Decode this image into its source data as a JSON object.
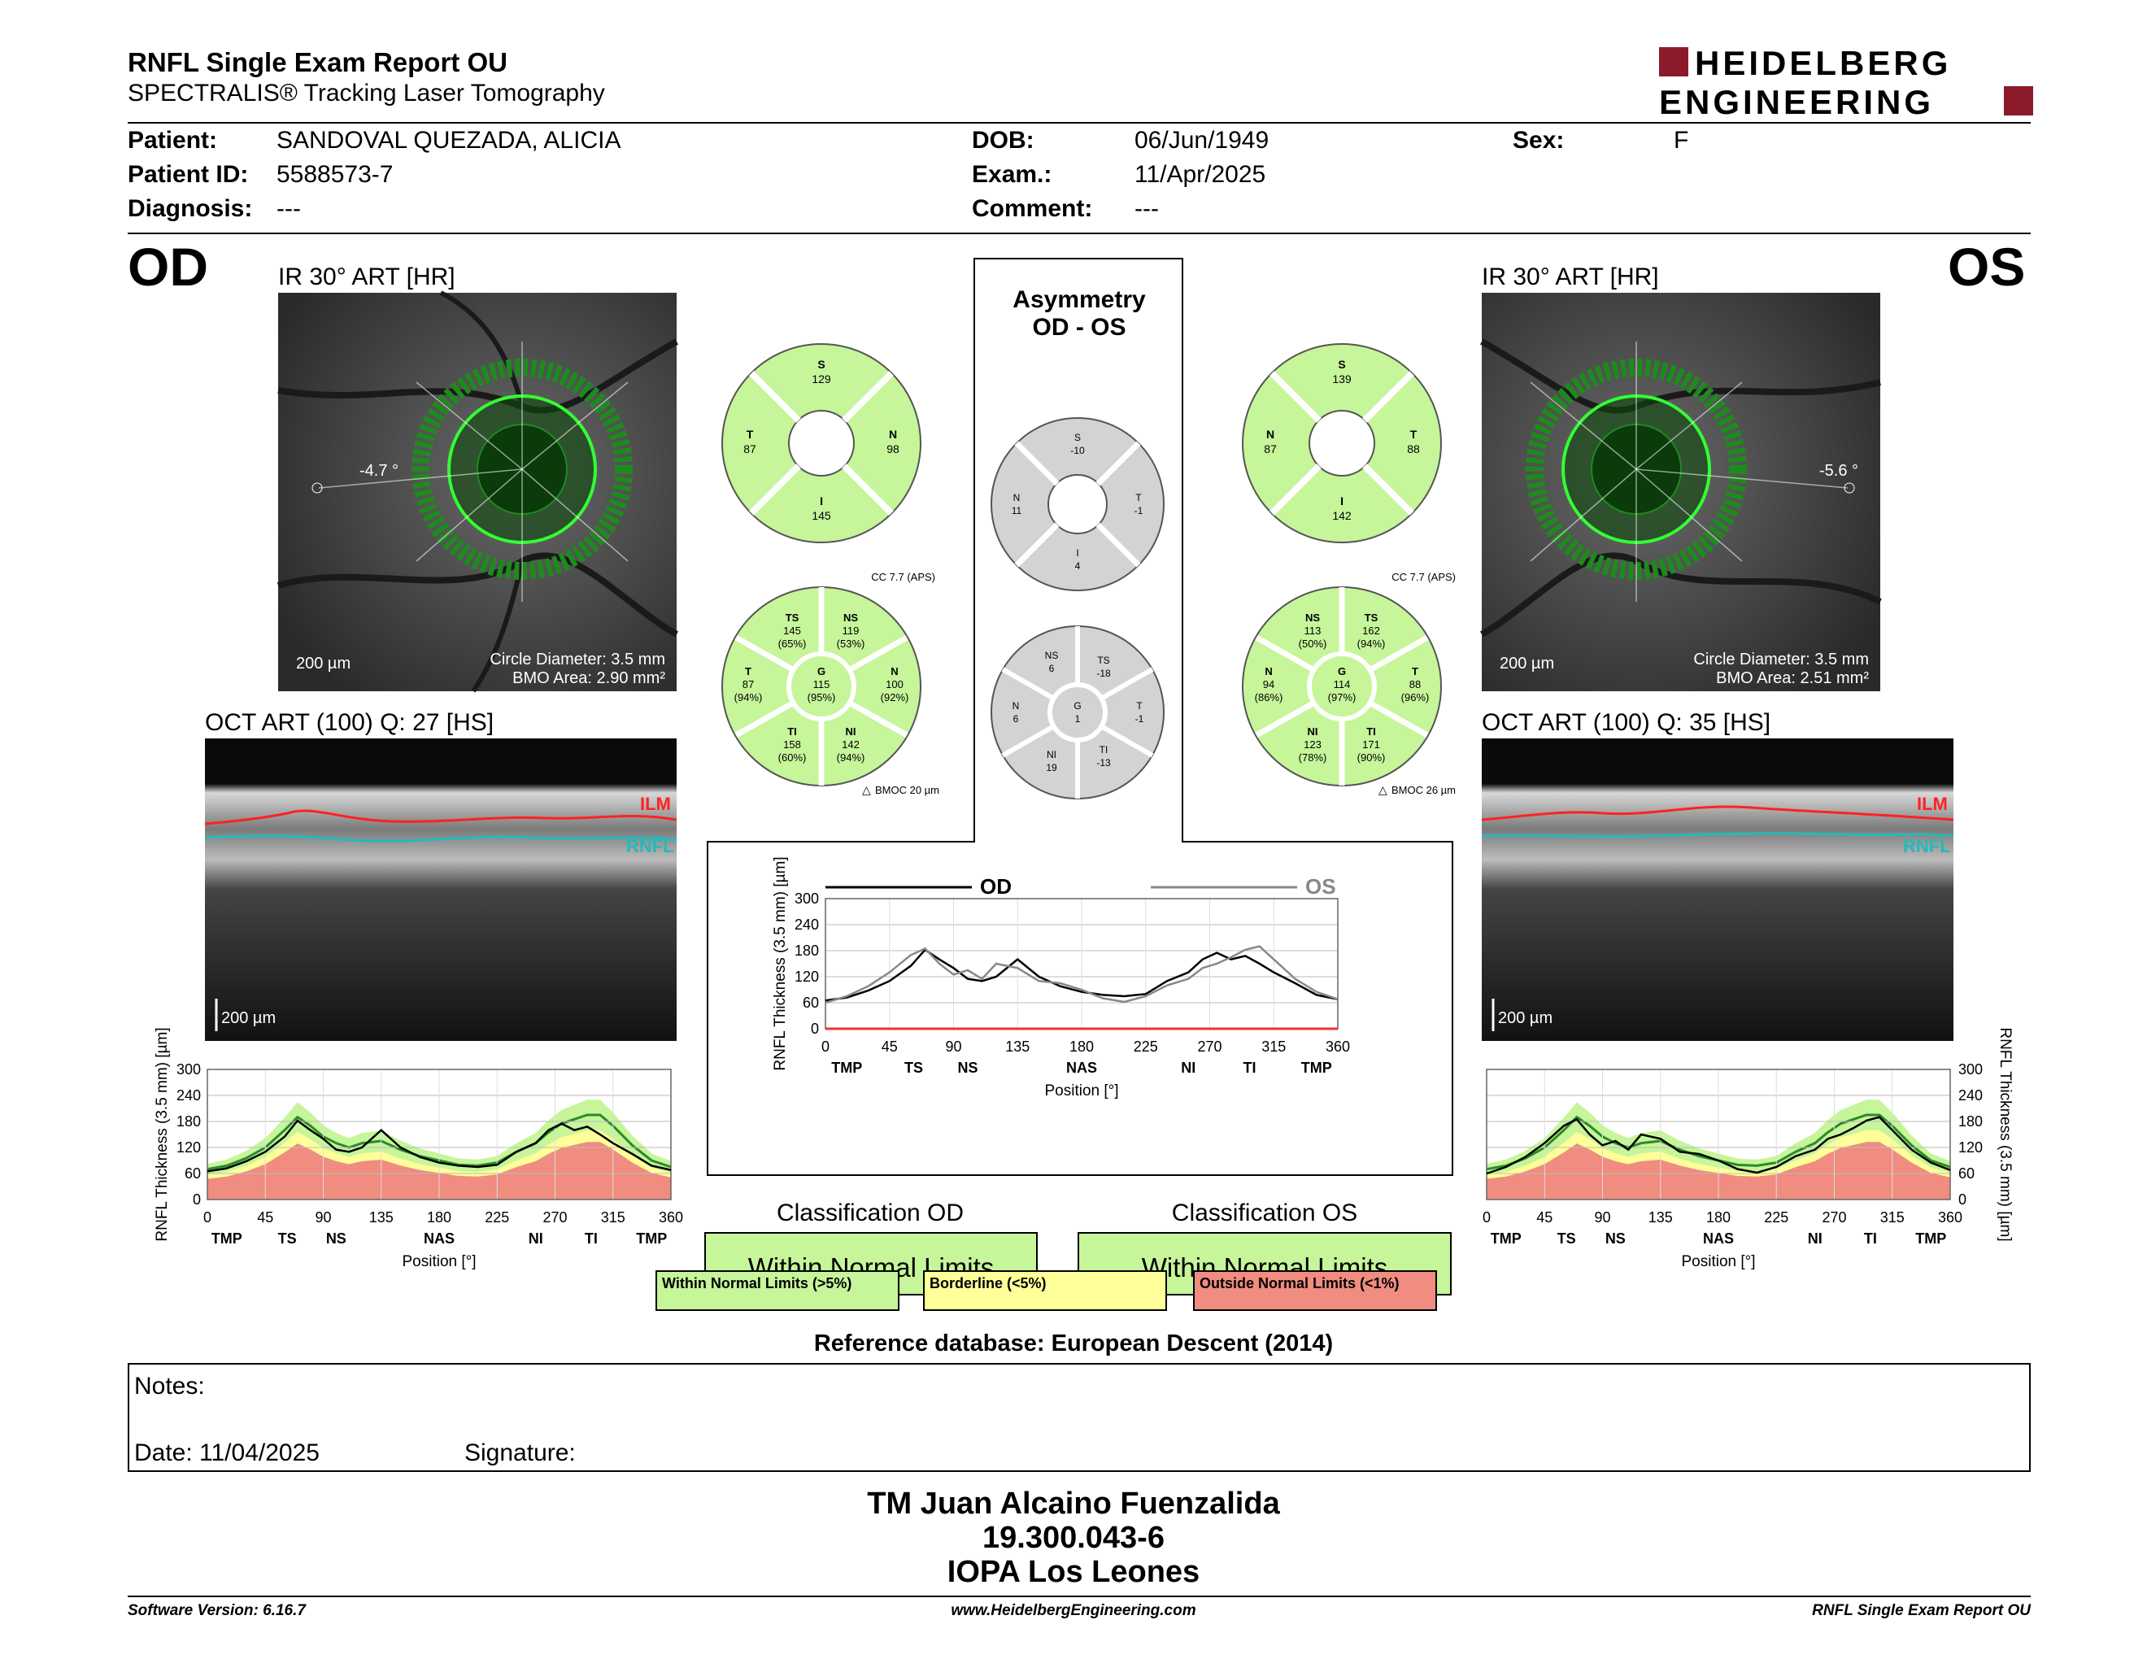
{
  "header": {
    "title": "RNFL Single Exam Report OU",
    "subtitle": "SPECTRALIS® Tracking Laser Tomography",
    "logo_line1": "HEIDELBERG",
    "logo_line2": "ENGINEERING"
  },
  "patient": {
    "patient_label": "Patient:",
    "patient_value": "SANDOVAL QUEZADA, ALICIA",
    "id_label": "Patient ID:",
    "id_value": "5588573-7",
    "diag_label": "Diagnosis:",
    "diag_value": "---",
    "dob_label": "DOB:",
    "dob_value": "06/Jun/1949",
    "exam_label": "Exam.:",
    "exam_value": "11/Apr/2025",
    "comment_label": "Comment:",
    "comment_value": "---",
    "sex_label": "Sex:",
    "sex_value": "F"
  },
  "od": {
    "eye": "OD",
    "ir_title": "IR 30° ART [HR]",
    "angle": "-4.7 °",
    "scale": "200 µm",
    "circle": "Circle Diameter: 3.5 mm",
    "bmo": "BMO Area: 2.90 mm²",
    "oct_title": "OCT ART (100) Q: 27 [HS]",
    "oct_scale": "200 µm",
    "ilm": "ILM",
    "rnfl": "RNFL",
    "cc": "CC 7.7 (APS)",
    "bmoc": "BMOC 20 µm",
    "sectors4": {
      "S": "129",
      "T": "87",
      "N": "98",
      "I": "145"
    },
    "sectors6": {
      "TS": {
        "n": "TS",
        "v": "145",
        "p": "(65%)"
      },
      "NS": {
        "n": "NS",
        "v": "119",
        "p": "(53%)"
      },
      "T": {
        "n": "T",
        "v": "87",
        "p": "(94%)"
      },
      "G": {
        "n": "G",
        "v": "115",
        "p": "(95%)"
      },
      "N": {
        "n": "N",
        "v": "100",
        "p": "(92%)"
      },
      "TI": {
        "n": "TI",
        "v": "158",
        "p": "(60%)"
      },
      "NI": {
        "n": "NI",
        "v": "142",
        "p": "(94%)"
      }
    },
    "classification_title": "Classification OD",
    "classification": "Within Normal Limits"
  },
  "os": {
    "eye": "OS",
    "ir_title": "IR 30° ART [HR]",
    "angle": "-5.6 °",
    "scale": "200 µm",
    "circle": "Circle Diameter: 3.5 mm",
    "bmo": "BMO Area: 2.51 mm²",
    "oct_title": "OCT ART (100) Q: 35 [HS]",
    "oct_scale": "200 µm",
    "ilm": "ILM",
    "rnfl": "RNFL",
    "cc": "CC 7.7 (APS)",
    "bmoc": "BMOC 26 µm",
    "sectors4": {
      "S": "139",
      "N": "87",
      "T": "88",
      "I": "142"
    },
    "sectors6": {
      "NS": {
        "n": "NS",
        "v": "113",
        "p": "(50%)"
      },
      "TS": {
        "n": "TS",
        "v": "162",
        "p": "(94%)"
      },
      "N": {
        "n": "N",
        "v": "94",
        "p": "(86%)"
      },
      "G": {
        "n": "G",
        "v": "114",
        "p": "(97%)"
      },
      "T": {
        "n": "T",
        "v": "88",
        "p": "(96%)"
      },
      "NI": {
        "n": "NI",
        "v": "123",
        "p": "(78%)"
      },
      "TI": {
        "n": "TI",
        "v": "171",
        "p": "(90%)"
      }
    },
    "classification_title": "Classification OS",
    "classification": "Within Normal Limits"
  },
  "asymmetry": {
    "title1": "Asymmetry",
    "title2": "OD - OS",
    "s4": {
      "S": "-10",
      "N": "11",
      "T": "-1",
      "I": "4"
    },
    "s6": {
      "NS": "6",
      "TS": "-18",
      "N": "6",
      "G": "1",
      "T": "-1",
      "NI": "19",
      "TI": "-13"
    },
    "labels6": {
      "NS": "NS",
      "TS": "TS",
      "N": "N",
      "G": "G",
      "T": "T",
      "NI": "NI",
      "TI": "TI"
    },
    "labels4": {
      "S": "S",
      "N": "N",
      "T": "T",
      "I": "I"
    }
  },
  "labels4": {
    "S": "S",
    "T": "T",
    "N": "N",
    "I": "I"
  },
  "chart_data": [
    {
      "type": "line",
      "name_hint": "OD RNFL thickness profile",
      "xlabel": "Position [°]",
      "ylabel": "RNFL Thickness (3.5 mm) [µm]",
      "xticks": [
        "0",
        "45",
        "90",
        "135",
        "180",
        "225",
        "270",
        "315",
        "360"
      ],
      "yticks": [
        "0",
        "60",
        "120",
        "180",
        "240",
        "300"
      ],
      "sector_labels": [
        "TMP",
        "TS",
        "NS",
        "NAS",
        "NI",
        "TI",
        "TMP"
      ],
      "sector_positions": [
        15,
        62,
        100,
        180,
        255,
        298,
        345
      ],
      "xlim": [
        0,
        360
      ],
      "ylim": [
        0,
        300
      ],
      "x": [
        0,
        15,
        30,
        45,
        60,
        70,
        80,
        90,
        100,
        110,
        120,
        135,
        150,
        165,
        180,
        195,
        210,
        225,
        240,
        255,
        265,
        275,
        285,
        295,
        305,
        315,
        330,
        345,
        360
      ],
      "values": [
        65,
        72,
        88,
        110,
        145,
        182,
        160,
        140,
        115,
        110,
        120,
        160,
        120,
        98,
        85,
        78,
        75,
        80,
        110,
        130,
        160,
        175,
        160,
        168,
        150,
        130,
        105,
        78,
        68
      ]
    },
    {
      "type": "line",
      "name_hint": "OS RNFL thickness profile",
      "xlabel": "Position [°]",
      "ylabel": "RNFL Thickness (3.5 mm) [µm]",
      "xticks": [
        "0",
        "45",
        "90",
        "135",
        "180",
        "225",
        "270",
        "315",
        "360"
      ],
      "yticks": [
        "0",
        "60",
        "120",
        "180",
        "240",
        "300"
      ],
      "sector_labels": [
        "TMP",
        "TS",
        "NS",
        "NAS",
        "NI",
        "TI",
        "TMP"
      ],
      "sector_positions": [
        15,
        62,
        100,
        180,
        255,
        298,
        345
      ],
      "xlim": [
        0,
        360
      ],
      "ylim": [
        0,
        300
      ],
      "x": [
        0,
        15,
        30,
        45,
        60,
        70,
        80,
        90,
        100,
        110,
        120,
        135,
        150,
        165,
        180,
        195,
        210,
        225,
        240,
        255,
        265,
        275,
        285,
        295,
        305,
        315,
        330,
        345,
        360
      ],
      "values": [
        60,
        75,
        98,
        130,
        170,
        185,
        150,
        125,
        135,
        115,
        150,
        140,
        110,
        105,
        90,
        70,
        62,
        75,
        100,
        115,
        140,
        150,
        165,
        182,
        190,
        160,
        115,
        85,
        68
      ]
    },
    {
      "type": "line",
      "name_hint": "OD vs OS asymmetry profile",
      "xlabel": "Position [°]",
      "ylabel": "RNFL Thickness (3.5 mm) [µm]",
      "xticks": [
        "0",
        "45",
        "90",
        "135",
        "180",
        "225",
        "270",
        "315",
        "360"
      ],
      "yticks": [
        "0",
        "60",
        "120",
        "180",
        "240",
        "300"
      ],
      "sector_labels": [
        "TMP",
        "TS",
        "NS",
        "NAS",
        "NI",
        "TI",
        "TMP"
      ],
      "sector_positions": [
        15,
        62,
        100,
        180,
        255,
        298,
        345
      ],
      "xlim": [
        0,
        360
      ],
      "ylim": [
        0,
        300
      ],
      "legend": [
        "OD",
        "OS"
      ],
      "series": [
        {
          "name": "OD",
          "values": [
            65,
            72,
            88,
            110,
            145,
            182,
            160,
            140,
            115,
            110,
            120,
            160,
            120,
            98,
            85,
            78,
            75,
            80,
            110,
            130,
            160,
            175,
            160,
            168,
            150,
            130,
            105,
            78,
            68
          ]
        },
        {
          "name": "OS",
          "values": [
            60,
            75,
            98,
            130,
            170,
            185,
            150,
            125,
            135,
            115,
            150,
            140,
            110,
            105,
            90,
            70,
            62,
            75,
            100,
            115,
            140,
            150,
            165,
            182,
            190,
            160,
            115,
            85,
            68
          ]
        }
      ],
      "x": [
        0,
        15,
        30,
        45,
        60,
        70,
        80,
        90,
        100,
        110,
        120,
        135,
        150,
        165,
        180,
        195,
        210,
        225,
        240,
        255,
        265,
        275,
        285,
        295,
        305,
        315,
        330,
        345,
        360
      ]
    }
  ],
  "legend": {
    "green": "Within Normal Limits (>5%)",
    "yellow": "Borderline (<5%)",
    "red": "Outside Normal Limits (<1%)",
    "green_color": "#c6f59a",
    "yellow_color": "#ffff99",
    "red_color": "#f08c80"
  },
  "reference": "Reference database: European Descent (2014)",
  "notes": {
    "notes_label": "Notes:",
    "date_label": "Date: 11/04/2025",
    "signature_label": "Signature:"
  },
  "signature": {
    "name": "TM Juan Alcaino Fuenzalida",
    "rut": "19.300.043-6",
    "clinic": "IOPA Los Leones"
  },
  "footer": {
    "left": "Software Version: 6.16.7",
    "center": "www.HeidelbergEngineering.com",
    "right": "RNFL Single Exam Report OU"
  }
}
